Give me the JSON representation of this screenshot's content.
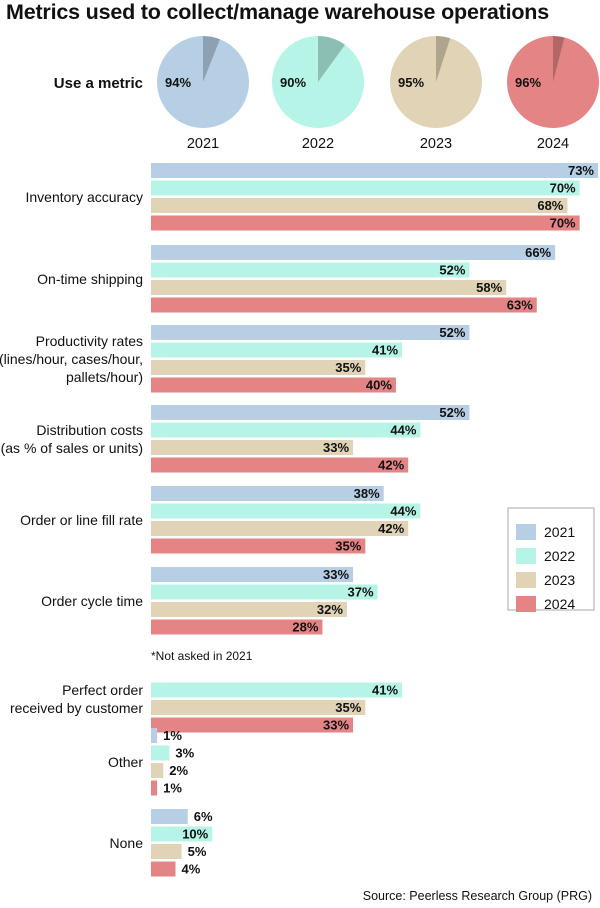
{
  "title": "Metrics used to collect/manage warehouse operations",
  "pie_row_label": "Use a metric",
  "note": "*Not asked in 2021",
  "source": "Source: Peerless Research Group (PRG)",
  "colors": {
    "2021": "#b7cfe4",
    "2022": "#b5f4e6",
    "2023": "#e0d3b6",
    "2024": "#e48484"
  },
  "chart_data": [
    {
      "type": "pie",
      "title": "Use a metric",
      "series": [
        {
          "name": "2021",
          "value": 94,
          "label": "94%"
        },
        {
          "name": "2022",
          "value": 90,
          "label": "90%"
        },
        {
          "name": "2023",
          "value": 95,
          "label": "95%"
        },
        {
          "name": "2024",
          "value": 96,
          "label": "96%"
        }
      ]
    },
    {
      "type": "bar",
      "orientation": "horizontal",
      "xlim": [
        0,
        73
      ],
      "legend_position": "right",
      "legend": [
        "2021",
        "2022",
        "2023",
        "2024"
      ],
      "categories": [
        {
          "label_lines": [
            "Inventory accuracy"
          ],
          "values": [
            73,
            70,
            68,
            70
          ]
        },
        {
          "label_lines": [
            "On-time shipping"
          ],
          "values": [
            66,
            52,
            58,
            63
          ]
        },
        {
          "label_lines": [
            "Productivity rates",
            "(lines/hour, cases/hour,",
            "pallets/hour)"
          ],
          "values": [
            52,
            41,
            35,
            40
          ]
        },
        {
          "label_lines": [
            "Distribution costs",
            "(as % of sales or units)"
          ],
          "values": [
            52,
            44,
            33,
            42
          ]
        },
        {
          "label_lines": [
            "Order or line fill rate"
          ],
          "values": [
            38,
            44,
            42,
            35
          ]
        },
        {
          "label_lines": [
            "Order cycle time"
          ],
          "values": [
            33,
            37,
            32,
            28
          ]
        },
        {
          "label_lines": [
            "Perfect order",
            "received by customer"
          ],
          "values": [
            null,
            41,
            35,
            33
          ]
        },
        {
          "label_lines": [
            "Other"
          ],
          "values": [
            1,
            3,
            2,
            1
          ]
        },
        {
          "label_lines": [
            "None"
          ],
          "values": [
            6,
            10,
            5,
            4
          ]
        }
      ]
    }
  ]
}
